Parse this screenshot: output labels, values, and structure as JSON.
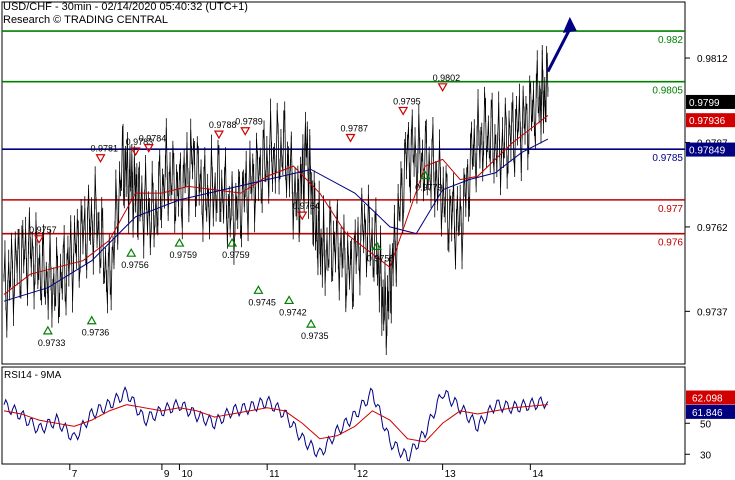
{
  "header": {
    "title": "USD/CHF - 30min - 02/14/2020 05:40:32 (UTC+1)",
    "source": "Research © TRADING CENTRAL"
  },
  "chart_data": [
    {
      "type": "line",
      "panel": "price",
      "title": "USD/CHF - 30min - 02/14/2020 05:40:32 (UTC+1)",
      "ylim": [
        0.9722,
        0.9828
      ],
      "y_ticks": [
        "0.9812",
        "0.9787",
        "0.9762",
        "0.9737"
      ],
      "x_ticks": [
        "7",
        "9",
        "10",
        "11",
        "12",
        "13",
        "14"
      ],
      "x_tick_pos": [
        1.5,
        3.6,
        4.0,
        6.0,
        8.0,
        10.0,
        12.0
      ],
      "xlim": [
        0,
        14.5
      ],
      "grid": false,
      "levels": [
        {
          "label": "0.982",
          "value": 0.982,
          "color": "#008000",
          "kind": "resistance"
        },
        {
          "label": "0.9805",
          "value": 0.9805,
          "color": "#008000",
          "kind": "resistance"
        },
        {
          "label": "0.9785",
          "value": 0.9785,
          "color": "#000080",
          "kind": "pivot"
        },
        {
          "label": "0.977",
          "value": 0.977,
          "color": "#c00000",
          "kind": "support"
        },
        {
          "label": "0.976",
          "value": 0.976,
          "color": "#c00000",
          "kind": "support"
        }
      ],
      "price_badges": [
        {
          "label": "0.9799",
          "value": 0.9799,
          "bg": "#000000"
        },
        {
          "label": "0.97936",
          "value": 0.97936,
          "bg": "#d00000"
        },
        {
          "label": "0.97849",
          "value": 0.97849,
          "bg": "#000080"
        }
      ],
      "series_close": {
        "x": [
          0,
          0.3,
          0.6,
          0.9,
          1.2,
          1.5,
          1.8,
          2.1,
          2.4,
          2.7,
          2.9,
          3.1,
          3.4,
          3.7,
          4.0,
          4.3,
          4.6,
          4.9,
          5.2,
          5.5,
          5.8,
          6.1,
          6.4,
          6.7,
          6.9,
          7.1,
          7.3,
          7.6,
          7.9,
          8.2,
          8.5,
          8.7,
          8.9,
          9.2,
          9.5,
          9.8,
          10.1,
          10.4,
          10.7,
          11.0,
          11.3,
          11.6,
          11.9,
          12.2,
          12.4
        ],
        "y": [
          0.9742,
          0.9752,
          0.9755,
          0.9748,
          0.9744,
          0.9752,
          0.976,
          0.9765,
          0.9745,
          0.9781,
          0.9775,
          0.977,
          0.9765,
          0.9778,
          0.9772,
          0.9782,
          0.977,
          0.9775,
          0.9765,
          0.9772,
          0.9778,
          0.9783,
          0.9785,
          0.9768,
          0.9786,
          0.9762,
          0.9755,
          0.9757,
          0.9748,
          0.9762,
          0.9755,
          0.9735,
          0.9755,
          0.9785,
          0.9782,
          0.9779,
          0.9768,
          0.9762,
          0.9785,
          0.979,
          0.9785,
          0.979,
          0.9793,
          0.98,
          0.9802
        ]
      },
      "ma_fast": {
        "x": [
          0,
          0.6,
          1.2,
          1.8,
          2.4,
          3.0,
          3.6,
          4.2,
          4.8,
          5.4,
          6.0,
          6.6,
          7.2,
          7.8,
          8.4,
          8.8,
          9.2,
          9.6,
          10.0,
          10.4,
          10.8,
          11.2,
          11.6,
          12.0,
          12.4
        ],
        "y": [
          0.9742,
          0.9748,
          0.975,
          0.9752,
          0.9758,
          0.9772,
          0.9772,
          0.9774,
          0.9773,
          0.9772,
          0.9777,
          0.978,
          0.9772,
          0.976,
          0.9754,
          0.975,
          0.9765,
          0.978,
          0.9782,
          0.9776,
          0.9777,
          0.9782,
          0.9787,
          0.9791,
          0.9795
        ]
      },
      "ma_slow": {
        "x": [
          0,
          1.0,
          2.0,
          3.0,
          4.0,
          5.0,
          6.0,
          7.0,
          8.0,
          8.8,
          9.4,
          10.0,
          10.6,
          11.2,
          11.8,
          12.4
        ],
        "y": [
          0.974,
          0.9744,
          0.9752,
          0.9765,
          0.977,
          0.9773,
          0.9776,
          0.9779,
          0.9772,
          0.9762,
          0.976,
          0.9773,
          0.9776,
          0.9778,
          0.9784,
          0.9788
        ]
      },
      "arrow": {
        "x": [
          12.4,
          12.9
        ],
        "y": [
          0.9808,
          0.9823
        ]
      },
      "annotations": [
        {
          "label": "0.9757",
          "x": 0.8,
          "value": 0.9757,
          "type": "high"
        },
        {
          "label": "0.9733",
          "x": 1.0,
          "value": 0.9733,
          "type": "low"
        },
        {
          "label": "0.9736",
          "x": 2.0,
          "value": 0.9736,
          "type": "low"
        },
        {
          "label": "0.9781",
          "x": 2.2,
          "value": 0.9781,
          "type": "high"
        },
        {
          "label": "0.9783",
          "x": 3.0,
          "value": 0.9783,
          "type": "high"
        },
        {
          "label": "0.9784",
          "x": 3.3,
          "value": 0.9784,
          "type": "high"
        },
        {
          "label": "0.9756",
          "x": 2.9,
          "value": 0.9756,
          "type": "low"
        },
        {
          "label": "0.9759",
          "x": 4.0,
          "value": 0.9759,
          "type": "low"
        },
        {
          "label": "0.9788",
          "x": 4.9,
          "value": 0.9788,
          "type": "high"
        },
        {
          "label": "0.9789",
          "x": 5.5,
          "value": 0.9789,
          "type": "high"
        },
        {
          "label": "0.9759",
          "x": 5.2,
          "value": 0.9759,
          "type": "low"
        },
        {
          "label": "0.9745",
          "x": 5.8,
          "value": 0.9745,
          "type": "low"
        },
        {
          "label": "0.9742",
          "x": 6.5,
          "value": 0.9742,
          "type": "low"
        },
        {
          "label": "0.9764",
          "x": 6.8,
          "value": 0.9764,
          "type": "high"
        },
        {
          "label": "0.9735",
          "x": 7.0,
          "value": 0.9735,
          "type": "low"
        },
        {
          "label": "0.9787",
          "x": 7.9,
          "value": 0.9787,
          "type": "high"
        },
        {
          "label": "0.9758",
          "x": 8.5,
          "value": 0.9758,
          "type": "low"
        },
        {
          "label": "0.9795",
          "x": 9.1,
          "value": 0.9795,
          "type": "high"
        },
        {
          "label": "0.9779",
          "x": 9.6,
          "value": 0.9779,
          "type": "low"
        },
        {
          "label": "0.9802",
          "x": 10.0,
          "value": 0.9802,
          "type": "high"
        }
      ]
    },
    {
      "type": "line",
      "panel": "rsi",
      "title": "RSI14 - 9MA",
      "ylim": [
        25,
        85
      ],
      "y_ticks": [
        "50",
        "30"
      ],
      "x": [
        0,
        0.4,
        0.8,
        1.2,
        1.6,
        2.0,
        2.4,
        2.8,
        3.2,
        3.6,
        4.0,
        4.4,
        4.8,
        5.2,
        5.6,
        6.0,
        6.4,
        6.8,
        7.2,
        7.6,
        8.0,
        8.4,
        8.8,
        9.2,
        9.6,
        10.0,
        10.4,
        10.8,
        11.2,
        11.6,
        12.0,
        12.4
      ],
      "series": [
        {
          "name": "RSI14",
          "color": "#000080",
          "values": [
            62,
            55,
            46,
            52,
            40,
            56,
            62,
            70,
            52,
            58,
            62,
            55,
            50,
            58,
            60,
            64,
            56,
            40,
            30,
            45,
            55,
            70,
            38,
            28,
            44,
            70,
            60,
            48,
            62,
            60,
            62,
            64
          ]
        },
        {
          "name": "9MA",
          "color": "#d00000",
          "values": [
            58,
            56,
            52,
            50,
            48,
            52,
            58,
            62,
            60,
            58,
            60,
            58,
            54,
            56,
            58,
            60,
            58,
            50,
            40,
            42,
            48,
            58,
            52,
            40,
            38,
            50,
            58,
            56,
            58,
            60,
            61,
            62
          ]
        }
      ],
      "badges": [
        {
          "label": "62.098",
          "value": 62.098,
          "bg": "#d00000"
        },
        {
          "label": "61.846",
          "value": 61.846,
          "bg": "#000080"
        }
      ]
    }
  ]
}
